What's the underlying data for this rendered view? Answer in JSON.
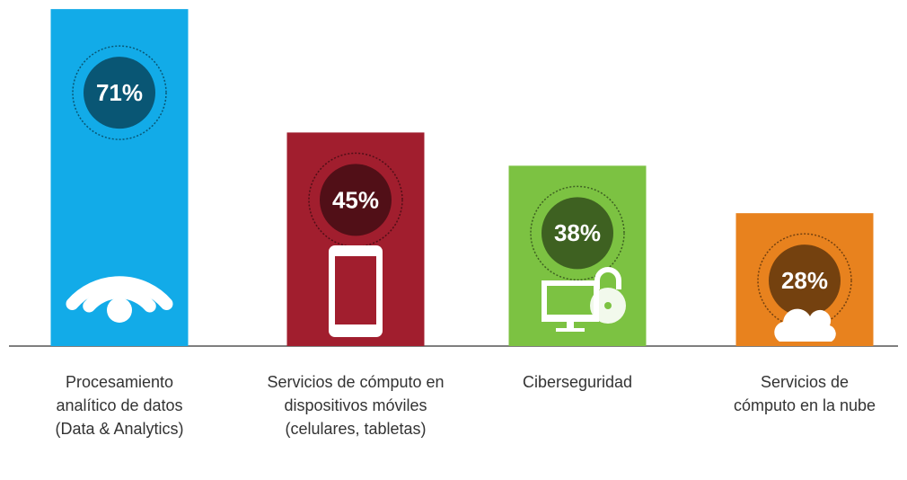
{
  "chart_data": {
    "type": "bar",
    "categories": [
      "Procesamiento analítico de datos (Data & Analytics)",
      "Servicios de cómputo en dispositivos móviles (celulares, tabletas)",
      "Ciberseguridad",
      "Servicios de cómputo en la nube"
    ],
    "values": [
      71,
      45,
      38,
      28
    ],
    "value_labels": [
      "71%",
      "45%",
      "38%",
      "28%"
    ],
    "colors": [
      "#12abe8",
      "#a11e2e",
      "#7cc242",
      "#e8821e"
    ]
  }
}
